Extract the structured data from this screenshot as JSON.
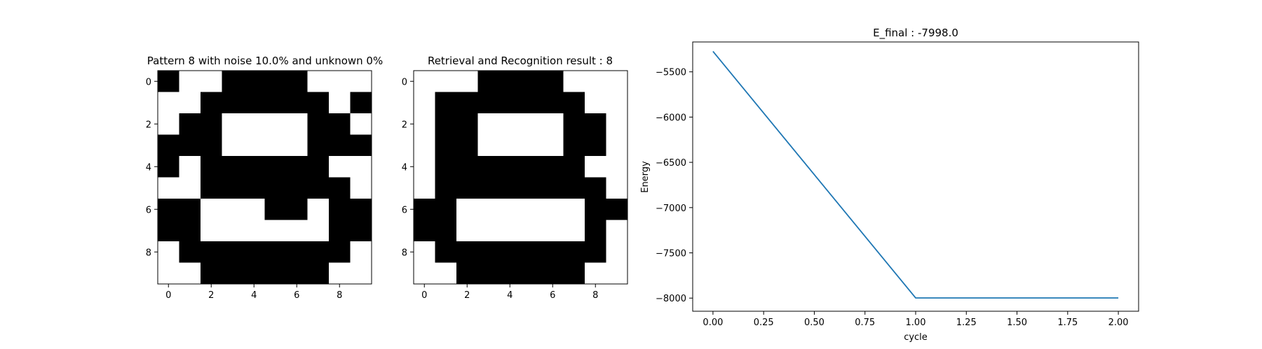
{
  "chart_data": [
    {
      "type": "heatmap",
      "title": "Pattern 8 with noise 10.0% and unknown 0%",
      "xticks": [
        "0",
        "2",
        "4",
        "6",
        "8"
      ],
      "yticks": [
        "0",
        "2",
        "4",
        "6",
        "8"
      ],
      "colormap": {
        "1": "#000000",
        "0": "#ffffff"
      },
      "grid": [
        [
          1,
          0,
          0,
          1,
          1,
          1,
          1,
          0,
          0,
          0
        ],
        [
          0,
          0,
          1,
          1,
          1,
          1,
          1,
          1,
          0,
          1
        ],
        [
          0,
          1,
          1,
          0,
          0,
          0,
          0,
          1,
          1,
          0
        ],
        [
          1,
          1,
          1,
          0,
          0,
          0,
          0,
          1,
          1,
          1
        ],
        [
          1,
          0,
          1,
          1,
          1,
          1,
          1,
          1,
          0,
          0
        ],
        [
          0,
          0,
          1,
          1,
          1,
          1,
          1,
          1,
          1,
          0
        ],
        [
          1,
          1,
          0,
          0,
          0,
          1,
          1,
          0,
          1,
          1
        ],
        [
          1,
          1,
          0,
          0,
          0,
          0,
          0,
          0,
          1,
          1
        ],
        [
          0,
          1,
          1,
          1,
          1,
          1,
          1,
          1,
          1,
          0
        ],
        [
          0,
          0,
          1,
          1,
          1,
          1,
          1,
          1,
          0,
          0
        ]
      ]
    },
    {
      "type": "heatmap",
      "title": "Retrieval and Recognition result : 8",
      "xticks": [
        "0",
        "2",
        "4",
        "6",
        "8"
      ],
      "yticks": [
        "0",
        "2",
        "4",
        "6",
        "8"
      ],
      "colormap": {
        "1": "#000000",
        "0": "#ffffff"
      },
      "grid": [
        [
          0,
          0,
          0,
          1,
          1,
          1,
          1,
          0,
          0,
          0
        ],
        [
          0,
          1,
          1,
          1,
          1,
          1,
          1,
          1,
          0,
          0
        ],
        [
          0,
          1,
          1,
          0,
          0,
          0,
          0,
          1,
          1,
          0
        ],
        [
          0,
          1,
          1,
          0,
          0,
          0,
          0,
          1,
          1,
          0
        ],
        [
          0,
          1,
          1,
          1,
          1,
          1,
          1,
          1,
          0,
          0
        ],
        [
          0,
          1,
          1,
          1,
          1,
          1,
          1,
          1,
          1,
          0
        ],
        [
          1,
          1,
          0,
          0,
          0,
          0,
          0,
          0,
          1,
          1
        ],
        [
          1,
          1,
          0,
          0,
          0,
          0,
          0,
          0,
          1,
          0
        ],
        [
          0,
          1,
          1,
          1,
          1,
          1,
          1,
          1,
          1,
          0
        ],
        [
          0,
          0,
          1,
          1,
          1,
          1,
          1,
          1,
          0,
          0
        ]
      ]
    },
    {
      "type": "line",
      "title": "E_final : -7998.0",
      "xlabel": "cycle",
      "ylabel": "Energy",
      "xlim": [
        -0.1,
        2.1
      ],
      "ylim": [
        -8145,
        -5170
      ],
      "xticks": [
        0.0,
        0.25,
        0.5,
        0.75,
        1.0,
        1.25,
        1.5,
        1.75,
        2.0
      ],
      "xtick_labels": [
        "0.00",
        "0.25",
        "0.50",
        "0.75",
        "1.00",
        "1.25",
        "1.50",
        "1.75",
        "2.00"
      ],
      "yticks": [
        -5500,
        -6000,
        -6500,
        -7000,
        -7500,
        -8000
      ],
      "ytick_labels": [
        "−5500",
        "−6000",
        "−6500",
        "−7000",
        "−7500",
        "−8000"
      ],
      "line_color": "#1f77b4",
      "grid": false,
      "series": [
        {
          "x": [
            0,
            1,
            2
          ],
          "y": [
            -5274,
            -7998,
            -7998
          ]
        }
      ]
    }
  ]
}
